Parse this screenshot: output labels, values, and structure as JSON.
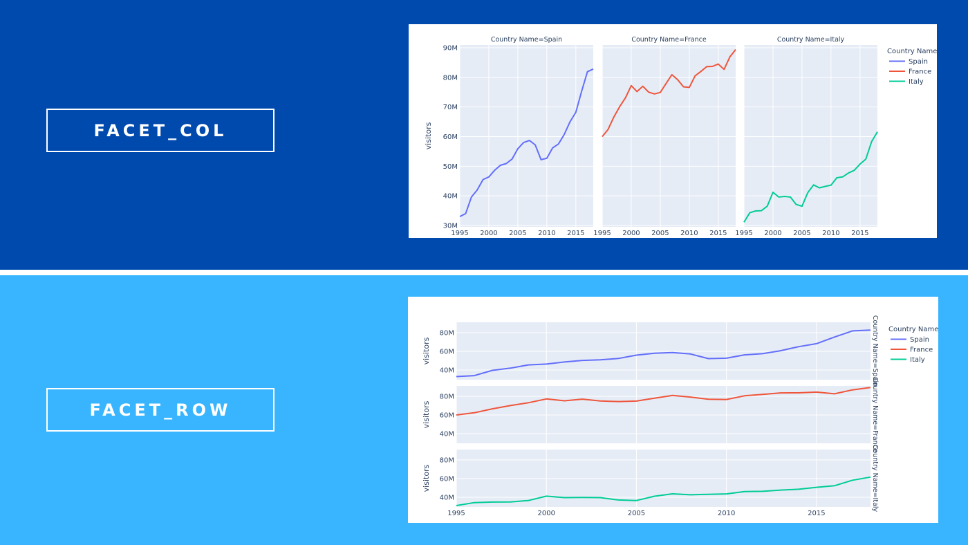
{
  "labels": {
    "facet_col": "FACET_COL",
    "facet_row": "FACET_ROW"
  },
  "colors": {
    "band_top": "#0049ad",
    "band_bottom": "#38b5fe",
    "plot_bg": "#e5ecf6",
    "grid": "#ffffff",
    "spain": "#636efa",
    "france": "#ef553b",
    "italy": "#00cc96"
  },
  "legend": {
    "title": "Country Name",
    "items": [
      "Spain",
      "France",
      "Italy"
    ]
  },
  "chart_data": [
    {
      "type": "line",
      "layout": "facet_col",
      "title": "",
      "xlabel": "",
      "ylabel": "visitors",
      "facet_titles": [
        "Country Name=Spain",
        "Country Name=France",
        "Country Name=Italy"
      ],
      "x": [
        1995,
        1996,
        1997,
        1998,
        1999,
        2000,
        2001,
        2002,
        2003,
        2004,
        2005,
        2006,
        2007,
        2008,
        2009,
        2010,
        2011,
        2012,
        2013,
        2014,
        2015,
        2016,
        2017,
        2018
      ],
      "x_ticks": [
        "1995",
        "2000",
        "2005",
        "2010",
        "2015"
      ],
      "y_ticks": [
        "30M",
        "40M",
        "50M",
        "60M",
        "70M",
        "80M",
        "90M"
      ],
      "ylim": [
        30,
        90
      ],
      "y_unit": "M",
      "grid": true,
      "legend_position": "right",
      "series": [
        {
          "name": "Spain",
          "values": [
            33.0,
            34.0,
            39.6,
            42.0,
            45.5,
            46.4,
            48.6,
            50.3,
            50.9,
            52.4,
            55.9,
            58.0,
            58.7,
            57.2,
            52.2,
            52.7,
            56.2,
            57.5,
            60.7,
            65.0,
            68.2,
            75.3,
            81.9,
            82.8
          ]
        },
        {
          "name": "France",
          "values": [
            60.0,
            62.4,
            66.6,
            70.1,
            73.1,
            77.2,
            75.2,
            77.0,
            75.0,
            74.4,
            74.9,
            77.9,
            80.9,
            79.2,
            76.8,
            76.6,
            80.5,
            82.0,
            83.6,
            83.7,
            84.5,
            82.7,
            86.9,
            89.4
          ]
        },
        {
          "name": "Italy",
          "values": [
            31.1,
            34.3,
            34.9,
            35.0,
            36.5,
            41.2,
            39.6,
            39.8,
            39.6,
            37.1,
            36.5,
            41.1,
            43.7,
            42.7,
            43.2,
            43.6,
            46.1,
            46.4,
            47.7,
            48.6,
            50.7,
            52.4,
            58.3,
            61.6
          ]
        }
      ]
    },
    {
      "type": "line",
      "layout": "facet_row",
      "title": "",
      "xlabel": "",
      "ylabel": "visitors",
      "facet_titles": [
        "Country Name=Spain",
        "Country Name=France",
        "Country Name=Italy"
      ],
      "x": [
        1995,
        1996,
        1997,
        1998,
        1999,
        2000,
        2001,
        2002,
        2003,
        2004,
        2005,
        2006,
        2007,
        2008,
        2009,
        2010,
        2011,
        2012,
        2013,
        2014,
        2015,
        2016,
        2017,
        2018
      ],
      "x_ticks": [
        "1995",
        "2000",
        "2005",
        "2010",
        "2015"
      ],
      "y_ticks": [
        "40M",
        "60M",
        "80M"
      ],
      "ylim": [
        29,
        91
      ],
      "y_unit": "M",
      "grid": true,
      "legend_position": "right",
      "series": [
        {
          "name": "Spain",
          "values": [
            33.0,
            34.0,
            39.6,
            42.0,
            45.5,
            46.4,
            48.6,
            50.3,
            50.9,
            52.4,
            55.9,
            58.0,
            58.7,
            57.2,
            52.2,
            52.7,
            56.2,
            57.5,
            60.7,
            65.0,
            68.2,
            75.3,
            81.9,
            82.8
          ]
        },
        {
          "name": "France",
          "values": [
            60.0,
            62.4,
            66.6,
            70.1,
            73.1,
            77.2,
            75.2,
            77.0,
            75.0,
            74.4,
            74.9,
            77.9,
            80.9,
            79.2,
            76.8,
            76.6,
            80.5,
            82.0,
            83.6,
            83.7,
            84.5,
            82.7,
            86.9,
            89.4
          ]
        },
        {
          "name": "Italy",
          "values": [
            31.1,
            34.3,
            34.9,
            35.0,
            36.5,
            41.2,
            39.6,
            39.8,
            39.6,
            37.1,
            36.5,
            41.1,
            43.7,
            42.7,
            43.2,
            43.6,
            46.1,
            46.4,
            47.7,
            48.6,
            50.7,
            52.4,
            58.3,
            61.6
          ]
        }
      ]
    }
  ]
}
